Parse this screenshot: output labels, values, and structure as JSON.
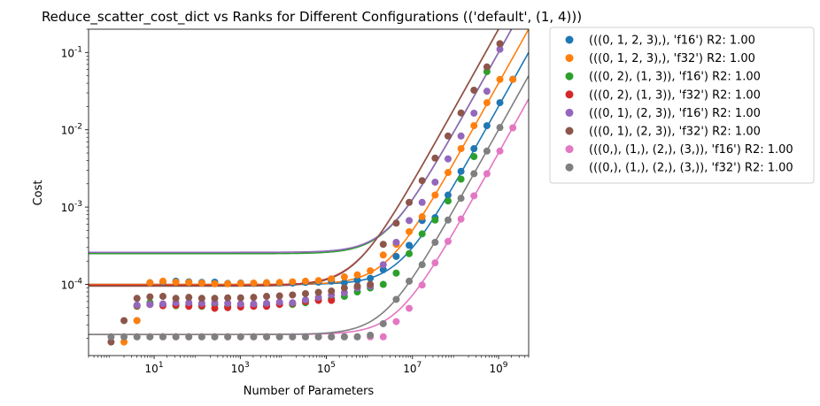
{
  "chart_data": {
    "type": "scatter",
    "title": "Reduce_scatter_cost_dict vs Ranks for Different Configurations (('default', (1, 4)))",
    "xlabel": "Number of Parameters",
    "ylabel": "Cost",
    "xscale": "log",
    "yscale": "log",
    "xlim": [
      0.3,
      5000000000
    ],
    "ylim": [
      1.2e-05,
      0.2
    ],
    "x_ticks": [
      {
        "value": 10,
        "label": "10^1"
      },
      {
        "value": 1000,
        "label": "10^3"
      },
      {
        "value": 100000,
        "label": "10^5"
      },
      {
        "value": 10000000,
        "label": "10^7"
      },
      {
        "value": 1000000000,
        "label": "10^9"
      }
    ],
    "y_ticks": [
      {
        "value": 0.0001,
        "label": "10^-4"
      },
      {
        "value": 0.001,
        "label": "10^-3"
      },
      {
        "value": 0.01,
        "label": "10^-2"
      },
      {
        "value": 0.1,
        "label": "10^-1"
      }
    ],
    "legend_position": "outside-upper-right",
    "series": [
      {
        "name": "(((0, 1, 2, 3),), 'f16') R2: 1.00",
        "color": "#1f77b4",
        "x_points": [
          4,
          8,
          16,
          32,
          64,
          128,
          256,
          512,
          1024,
          2048,
          4096,
          8192,
          16384,
          32768,
          65536,
          131072,
          262144,
          524288,
          1048576,
          2097152,
          4194304,
          8388608,
          16777216,
          33554432,
          67108864,
          134217728,
          268435456,
          536870912,
          1073741824,
          2147483648
        ],
        "y_points": [
          3.4e-05,
          0.000105,
          0.000108,
          0.00011,
          0.000108,
          0.000106,
          0.000107,
          0.000103,
          0.000104,
          0.000103,
          0.000105,
          0.000104,
          0.000104,
          0.000106,
          0.000107,
          0.00011,
          0.000105,
          0.000113,
          0.00012,
          0.000155,
          0.00023,
          0.00032,
          0.00067,
          0.00073,
          0.00143,
          0.0029,
          0.0057,
          0.0113,
          0.0224,
          0.045
        ],
        "fit": {
          "a": 2e-11,
          "b": 0.0001
        }
      },
      {
        "name": "(((0, 1, 2, 3),), 'f32') R2: 1.00",
        "color": "#ff7f0e",
        "x_points": [
          2,
          4,
          8,
          16,
          32,
          64,
          128,
          256,
          512,
          1024,
          2048,
          4096,
          8192,
          16384,
          32768,
          65536,
          131072,
          262144,
          524288,
          1048576,
          2097152,
          4194304,
          8388608,
          16777216,
          33554432,
          67108864,
          134217728,
          268435456,
          536870912,
          1073741824,
          2147483648
        ],
        "y_points": [
          1.8e-05,
          3.4e-05,
          0.000105,
          0.00011,
          0.000107,
          0.000106,
          0.000104,
          0.000102,
          0.000102,
          0.000103,
          0.000104,
          0.000105,
          0.000106,
          0.000108,
          0.00011,
          0.000112,
          0.000118,
          0.000125,
          0.000133,
          0.00015,
          0.00024,
          0.00033,
          0.00048,
          0.00075,
          0.00143,
          0.0028,
          0.0057,
          0.0113,
          0.0224,
          0.0448,
          0.0448
        ],
        "fit": {
          "a": 4e-11,
          "b": 0.0001
        },
        "drop_last": true
      },
      {
        "name": "(((0, 2), (1, 3)), 'f16') R2: 1.00",
        "color": "#2ca02c",
        "x_points": [
          4,
          8,
          16,
          32,
          64,
          128,
          256,
          512,
          1024,
          2048,
          4096,
          8192,
          16384,
          32768,
          65536,
          131072,
          262144,
          524288,
          1048576,
          2097152,
          4194304,
          8388608,
          16777216,
          33554432,
          67108864,
          134217728,
          268435456,
          536870912
        ],
        "y_points": [
          5.2e-05,
          5.8e-05,
          5.5e-05,
          5.3e-05,
          5.5e-05,
          5.2e-05,
          5.5e-05,
          5.2e-05,
          5.5e-05,
          5.5e-05,
          5.4e-05,
          5.6e-05,
          5.5e-05,
          5.8e-05,
          6.3e-05,
          6.5e-05,
          7e-05,
          8e-05,
          9e-05,
          0.0001,
          0.00014,
          0.00025,
          0.00045,
          0.00068,
          0.0012,
          0.0023,
          0.0045,
          0.0565
        ],
        "fit": {
          "a": 1e-10,
          "b": 0.00025
        }
      },
      {
        "name": "(((0, 2), (1, 3)), 'f32') R2: 1.00",
        "color": "#d62728",
        "x_points": [
          4,
          8,
          16,
          32,
          64,
          128,
          256,
          512,
          1024,
          2048,
          4096,
          8192,
          16384,
          32768,
          65536,
          131072
        ],
        "y_points": [
          5.3e-05,
          5.5e-05,
          5.3e-05,
          5.4e-05,
          5.2e-05,
          5.3e-05,
          4.9e-05,
          5e-05,
          5.1e-05,
          5.2e-05,
          5.2e-05,
          5.5e-05,
          5.7e-05,
          6e-05,
          6.2e-05,
          6.2e-05
        ],
        "fit": {
          "a": 2e-10,
          "b": 9.75e-05
        }
      },
      {
        "name": "(((0, 1), (2, 3)), 'f16') R2: 1.00",
        "color": "#9467bd",
        "x_points": [
          4,
          8,
          16,
          32,
          64,
          128,
          256,
          512,
          1024,
          2048,
          4096,
          8192,
          16384,
          32768,
          65536,
          131072,
          262144,
          524288,
          1048576,
          2097152,
          4194304,
          8388608,
          16777216,
          33554432,
          67108864,
          134217728,
          268435456,
          536870912,
          1073741824
        ],
        "y_points": [
          5.4e-05,
          5.5e-05,
          5.6e-05,
          5.8e-05,
          5.8e-05,
          5.7e-05,
          5.8e-05,
          5.7e-05,
          5.6e-05,
          5.6e-05,
          5.7e-05,
          5.9e-05,
          5.8e-05,
          6.3e-05,
          6.8e-05,
          7.3e-05,
          7.8e-05,
          9e-05,
          9.5e-05,
          0.00018,
          0.00035,
          0.00067,
          0.00115,
          0.0021,
          0.0042,
          0.0083,
          0.0164,
          0.0315,
          0.11
        ],
        "fit": {
          "a": 1e-10,
          "b": 0.00026
        }
      },
      {
        "name": "(((0, 1), (2, 3)), 'f32') R2: 1.00",
        "color": "#8c564b",
        "x_points": [
          1,
          2,
          4,
          8,
          16,
          32,
          64,
          128,
          256,
          512,
          1024,
          2048,
          4096,
          8192,
          16384,
          32768,
          65536,
          131072,
          262144,
          524288,
          1048576,
          2097152,
          4194304,
          8388608,
          16777216,
          33554432,
          67108864,
          134217728,
          268435456,
          536870912,
          1073741824
        ],
        "y_points": [
          1.8e-05,
          3.4e-05,
          6.6e-05,
          6.9e-05,
          7e-05,
          6.6e-05,
          6.8e-05,
          6.6e-05,
          6.6e-05,
          6.7e-05,
          6.7e-05,
          6.8e-05,
          7e-05,
          7.1e-05,
          7.3e-05,
          7.6e-05,
          7.9e-05,
          8.2e-05,
          9e-05,
          9.5e-05,
          0.0001,
          0.00033,
          0.00062,
          0.00115,
          0.0022,
          0.0043,
          0.0083,
          0.0165,
          0.0325,
          0.065,
          0.13
        ],
        "fit": {
          "a": 2e-10,
          "b": 9.5e-05
        },
        "reorder": true
      },
      {
        "name": "(((0,), (1,), (2,), (3,)), 'f16') R2: 1.00",
        "color": "#e377c2",
        "x_points": [
          4,
          8,
          16,
          32,
          64,
          128,
          256,
          512,
          1024,
          2048,
          4096,
          8192,
          16384,
          32768,
          65536,
          131072,
          262144,
          524288,
          1048576,
          2097152,
          4194304,
          8388608,
          16777216,
          33554432,
          67108864,
          134217728,
          268435456,
          536870912,
          1073741824,
          2147483648
        ],
        "y_points": [
          2.1e-05,
          2.1e-05,
          2.1e-05,
          2.1e-05,
          2.1e-05,
          2.1e-05,
          2.1e-05,
          2.1e-05,
          2.1e-05,
          2.1e-05,
          2.1e-05,
          2.1e-05,
          2.1e-05,
          2.1e-05,
          2.1e-05,
          2.1e-05,
          2.1e-05,
          2.1e-05,
          2.1e-05,
          2.1e-05,
          3.3e-05,
          4.9e-05,
          9.8e-05,
          0.00019,
          0.00036,
          0.0007,
          0.0014,
          0.0027,
          0.0053,
          0.0106
        ],
        "fit": {
          "a": 5e-12,
          "b": 2.25e-05
        }
      },
      {
        "name": "(((0,), (1,), (2,), (3,)), 'f32') R2: 1.00",
        "color": "#7f7f7f",
        "x_points": [
          1,
          2,
          4,
          8,
          16,
          32,
          64,
          128,
          256,
          512,
          1024,
          2048,
          4096,
          8192,
          16384,
          32768,
          65536,
          131072,
          262144,
          524288,
          1048576,
          2097152,
          4194304,
          8388608,
          16777216,
          33554432,
          67108864,
          134217728,
          268435456,
          536870912,
          1073741824
        ],
        "y_points": [
          2.1e-05,
          2.1e-05,
          2.1e-05,
          2.1e-05,
          2.1e-05,
          2.1e-05,
          2.1e-05,
          2.1e-05,
          2.1e-05,
          2.1e-05,
          2.1e-05,
          2.1e-05,
          2.1e-05,
          2.1e-05,
          2.1e-05,
          2.1e-05,
          2.1e-05,
          2.1e-05,
          2.1e-05,
          2.1e-05,
          2.2e-05,
          3.1e-05,
          6.4e-05,
          0.00011,
          0.00018,
          0.00035,
          0.00068,
          0.0013,
          0.0027,
          0.0053,
          0.0107
        ],
        "fit": {
          "a": 1e-11,
          "b": 2.25e-05
        }
      }
    ]
  }
}
